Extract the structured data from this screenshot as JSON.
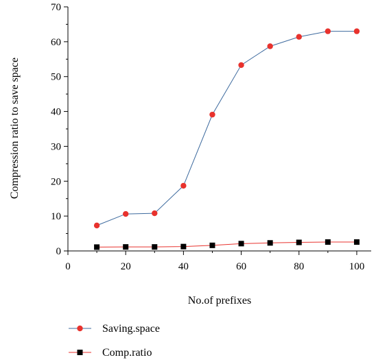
{
  "chart_data": {
    "type": "line",
    "title": "",
    "xlabel": "No.of prefixes",
    "ylabel": "Compression ratio to save space",
    "xlim": [
      0,
      105
    ],
    "ylim": [
      0,
      70
    ],
    "x_ticks": [
      0,
      20,
      40,
      60,
      80,
      100
    ],
    "y_ticks": [
      0,
      10,
      20,
      30,
      40,
      50,
      60,
      70
    ],
    "grid": false,
    "legend_position": "bottom-left",
    "x": [
      10,
      20,
      30,
      40,
      50,
      60,
      70,
      80,
      90,
      100
    ],
    "series": [
      {
        "name": "Saving.space",
        "values": [
          7.3,
          10.6,
          10.8,
          18.7,
          39.1,
          53.3,
          58.7,
          61.4,
          63.0,
          63.0
        ],
        "line_color": "#3d6a9e",
        "marker_color": "#e8322d",
        "marker": "circle"
      },
      {
        "name": "Comp.ratio",
        "values": [
          1.1,
          1.15,
          1.15,
          1.25,
          1.6,
          2.1,
          2.3,
          2.45,
          2.55,
          2.55
        ],
        "line_color": "#e8322d",
        "marker_color": "#000000",
        "marker": "square"
      }
    ]
  }
}
